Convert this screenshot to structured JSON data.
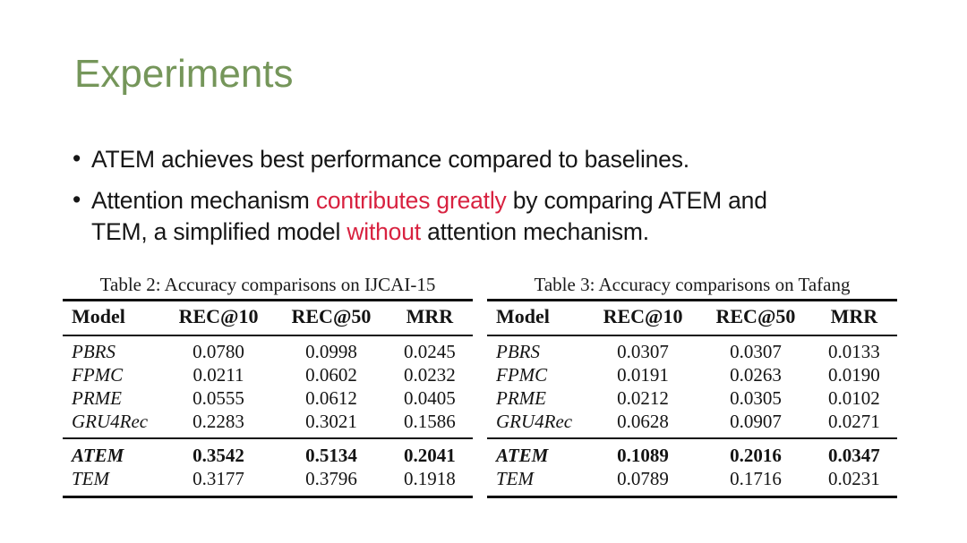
{
  "title": "Experiments",
  "bullets": {
    "first": "ATEM achieves best performance compared to baselines.",
    "second": {
      "part1": "Attention mechanism ",
      "highlight1": "contributes greatly",
      "part2": " by comparing ATEM and",
      "part3": "TEM, a simplified model ",
      "highlight2": "without",
      "part4": " attention mechanism."
    }
  },
  "colors": {
    "title_green": "#75965a",
    "highlight_red": "#d82240",
    "text_black": "#161616"
  },
  "tables": [
    {
      "caption": "Table 2: Accuracy comparisons on IJCAI-15",
      "headers": [
        "Model",
        "REC@10",
        "REC@50",
        "MRR"
      ],
      "rows": [
        [
          "PBRS",
          "0.0780",
          "0.0998",
          "0.0245"
        ],
        [
          "FPMC",
          "0.0211",
          "0.0602",
          "0.0232"
        ],
        [
          "PRME",
          "0.0555",
          "0.0612",
          "0.0405"
        ],
        [
          "GRU4Rec",
          "0.2283",
          "0.3021",
          "0.1586"
        ]
      ],
      "proposed": [
        [
          "ATEM",
          "0.3542",
          "0.5134",
          "0.2041"
        ],
        [
          "TEM",
          "0.3177",
          "0.3796",
          "0.1918"
        ]
      ]
    },
    {
      "caption": "Table 3: Accuracy comparisons on Tafang",
      "headers": [
        "Model",
        "REC@10",
        "REC@50",
        "MRR"
      ],
      "rows": [
        [
          "PBRS",
          "0.0307",
          "0.0307",
          "0.0133"
        ],
        [
          "FPMC",
          "0.0191",
          "0.0263",
          "0.0190"
        ],
        [
          "PRME",
          "0.0212",
          "0.0305",
          "0.0102"
        ],
        [
          "GRU4Rec",
          "0.0628",
          "0.0907",
          "0.0271"
        ]
      ],
      "proposed": [
        [
          "ATEM",
          "0.1089",
          "0.2016",
          "0.0347"
        ],
        [
          "TEM",
          "0.0789",
          "0.1716",
          "0.0231"
        ]
      ]
    }
  ]
}
